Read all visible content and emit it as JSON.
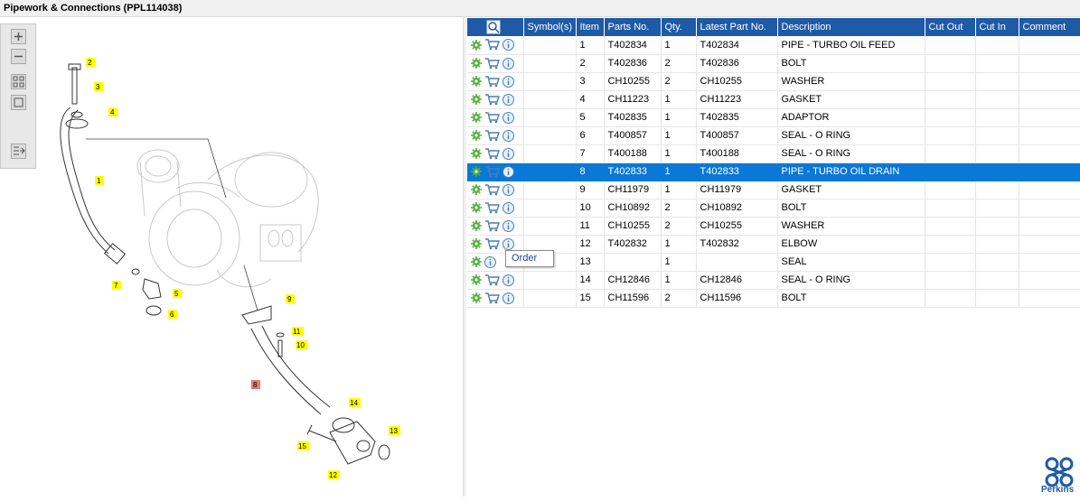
{
  "title": "Pipework & Connections (PPL114038)",
  "columns": [
    "",
    "Symbol(s)",
    "Item",
    "Parts No.",
    "Qty.",
    "Latest Part No.",
    "Description",
    "Cut Out",
    "Cut In",
    "Comment"
  ],
  "rows": [
    {
      "item": "1",
      "parts_no": "T402834",
      "qty": "1",
      "latest": "T402834",
      "desc": "PIPE - TURBO OIL FEED"
    },
    {
      "item": "2",
      "parts_no": "T402836",
      "qty": "2",
      "latest": "T402836",
      "desc": "BOLT"
    },
    {
      "item": "3",
      "parts_no": "CH10255",
      "qty": "2",
      "latest": "CH10255",
      "desc": "WASHER"
    },
    {
      "item": "4",
      "parts_no": "CH11223",
      "qty": "1",
      "latest": "CH11223",
      "desc": "GASKET"
    },
    {
      "item": "5",
      "parts_no": "T402835",
      "qty": "1",
      "latest": "T402835",
      "desc": "ADAPTOR"
    },
    {
      "item": "6",
      "parts_no": "T400857",
      "qty": "1",
      "latest": "T400857",
      "desc": "SEAL - O RING"
    },
    {
      "item": "7",
      "parts_no": "T400188",
      "qty": "1",
      "latest": "T400188",
      "desc": "SEAL - O RING"
    },
    {
      "item": "8",
      "parts_no": "T402833",
      "qty": "1",
      "latest": "T402833",
      "desc": "PIPE - TURBO OIL DRAIN"
    },
    {
      "item": "9",
      "parts_no": "CH11979",
      "qty": "1",
      "latest": "CH11979",
      "desc": "GASKET"
    },
    {
      "item": "10",
      "parts_no": "CH10892",
      "qty": "2",
      "latest": "CH10892",
      "desc": "BOLT"
    },
    {
      "item": "11",
      "parts_no": "CH10255",
      "qty": "2",
      "latest": "CH10255",
      "desc": "WASHER"
    },
    {
      "item": "12",
      "parts_no": "T402832",
      "qty": "1",
      "latest": "T402832",
      "desc": "ELBOW"
    },
    {
      "item": "13",
      "parts_no": "",
      "qty": "1",
      "latest": "",
      "desc": "SEAL"
    },
    {
      "item": "14",
      "parts_no": "CH12846",
      "qty": "1",
      "latest": "CH12846",
      "desc": "SEAL - O RING"
    },
    {
      "item": "15",
      "parts_no": "CH11596",
      "qty": "2",
      "latest": "CH11596",
      "desc": "BOLT"
    }
  ],
  "selected_item": "8",
  "tooltip": "Order",
  "brand": "Perkins",
  "callouts": [
    "1",
    "2",
    "3",
    "4",
    "5",
    "6",
    "7",
    "8",
    "9",
    "10",
    "11",
    "12",
    "13",
    "14",
    "15"
  ],
  "colors": {
    "header": "#1f5aa6",
    "selected": "#0a78d7",
    "callout": "#ffff00",
    "callout_selected": "#e87a7a"
  }
}
